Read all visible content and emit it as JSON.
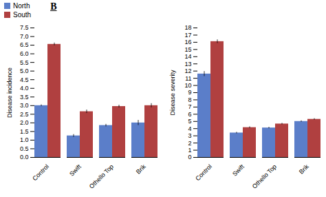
{
  "chart_data": [
    {
      "type": "bar",
      "categories": [
        "Control",
        "Swift",
        "Othello Top",
        "Brik"
      ],
      "ylabel": "Disease incidence",
      "series": [
        {
          "name": "North",
          "color": "#5b7ec9",
          "values": [
            3.0,
            1.25,
            1.85,
            2.0
          ],
          "errors": [
            0.05,
            0.08,
            0.07,
            0.15
          ]
        },
        {
          "name": "South",
          "color": "#b04040",
          "values": [
            6.55,
            2.65,
            2.95,
            3.0
          ],
          "errors": [
            0.08,
            0.1,
            0.08,
            0.12
          ]
        }
      ],
      "ylim": [
        0,
        7.5
      ],
      "yticks": [
        {
          "value": 0,
          "label": "0.0"
        },
        0.5,
        {
          "value": 1.0,
          "label": "1.0"
        },
        1.5,
        {
          "value": 2.0,
          "label": "2.0"
        },
        2.5,
        {
          "value": 3.0,
          "label": "3.0"
        },
        3.5,
        {
          "value": 4.0,
          "label": "4.0"
        },
        4.5,
        {
          "value": 5.0,
          "label": "5.0"
        },
        5.5,
        {
          "value": 6.0,
          "label": "6.0"
        },
        6.5,
        {
          "value": 7.0,
          "label": "7.0"
        },
        7.5
      ],
      "legend": "upper left",
      "annotations": [
        "B"
      ]
    },
    {
      "type": "bar",
      "categories": [
        "Control",
        "Swift",
        "Othello Top",
        "Brik"
      ],
      "ylabel": "Disease severity",
      "series": [
        {
          "name": "North",
          "color": "#5b7ec9",
          "values": [
            11.6,
            3.4,
            4.1,
            5.0
          ],
          "errors": [
            0.35,
            0.1,
            0.1,
            0.1
          ]
        },
        {
          "name": "South",
          "color": "#b04040",
          "values": [
            16.1,
            4.15,
            4.65,
            5.3
          ],
          "errors": [
            0.25,
            0.12,
            0.1,
            0.1
          ]
        }
      ],
      "ylim": [
        0,
        18
      ],
      "yticks": [
        0,
        1,
        2,
        3,
        4,
        5,
        6,
        7,
        8,
        9,
        10,
        11,
        12,
        13,
        14,
        15,
        16,
        17,
        18
      ]
    }
  ]
}
